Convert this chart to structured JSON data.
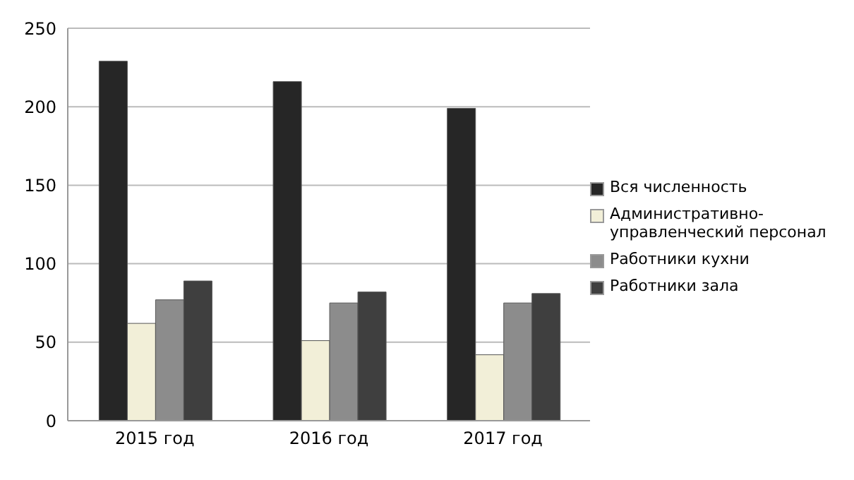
{
  "chart_data": {
    "type": "bar",
    "categories": [
      "2015 год",
      "2016 год",
      "2017 год"
    ],
    "series": [
      {
        "name": "Вся численность",
        "color": "#262626",
        "values": [
          229,
          216,
          199
        ]
      },
      {
        "name": "Административно-управленческий персонал",
        "color": "#f2efd8",
        "values": [
          62,
          51,
          42
        ]
      },
      {
        "name": "Работники кухни",
        "color": "#8c8c8c",
        "values": [
          77,
          75,
          75
        ]
      },
      {
        "name": "Работники зала",
        "color": "#3f3f3f",
        "values": [
          89,
          82,
          81
        ]
      }
    ],
    "ylim": [
      0,
      250
    ],
    "yticks": [
      0,
      50,
      100,
      150,
      200,
      250
    ],
    "grid": "y",
    "legend": "right"
  }
}
